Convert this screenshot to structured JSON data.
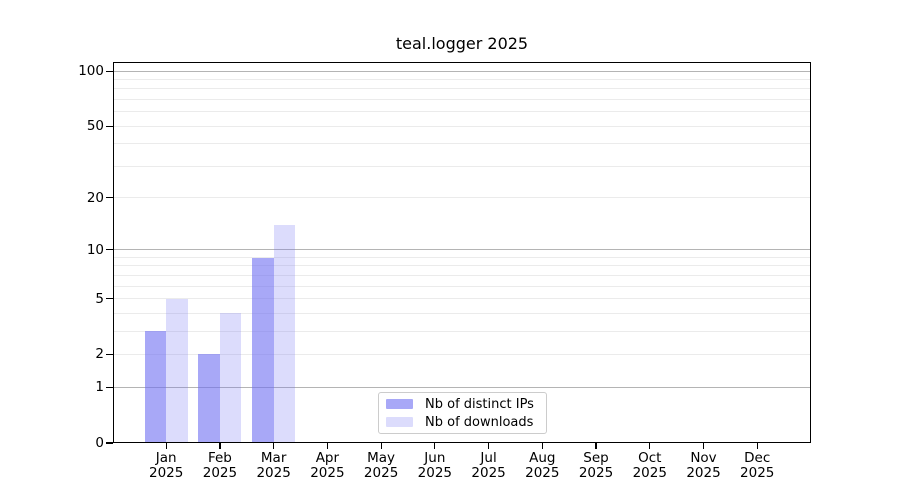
{
  "chart_data": {
    "type": "bar",
    "title": "teal.logger 2025",
    "year_label": "2025",
    "categories": [
      "Jan",
      "Feb",
      "Mar",
      "Apr",
      "May",
      "Jun",
      "Jul",
      "Aug",
      "Sep",
      "Oct",
      "Nov",
      "Dec"
    ],
    "series": [
      {
        "key": "distinct-ips",
        "name": "Nb of distinct IPs",
        "color": "rgba(110,110,242,0.6)",
        "values": [
          3,
          2,
          9,
          0,
          0,
          0,
          0,
          0,
          0,
          0,
          0,
          0
        ]
      },
      {
        "key": "downloads",
        "name": "Nb of downloads",
        "color": "rgba(110,110,242,0.24)",
        "values": [
          5,
          4,
          14,
          0,
          0,
          0,
          0,
          0,
          0,
          0,
          0,
          0
        ]
      }
    ],
    "yscale": "log10(value+1)",
    "ylim": [
      0,
      118
    ],
    "yticks": [
      0,
      1,
      2,
      5,
      10,
      20,
      50,
      100
    ],
    "grid_major": [
      1,
      10,
      100
    ],
    "grid_minor": [
      2,
      3,
      4,
      5,
      6,
      7,
      8,
      9,
      20,
      30,
      40,
      50,
      60,
      70,
      80,
      90
    ],
    "grid": "on",
    "legend_position": "bottom-center",
    "axis_color": "#000000",
    "grid_major_color": "#b4b4b4",
    "grid_minor_color": "#ebebeb"
  }
}
